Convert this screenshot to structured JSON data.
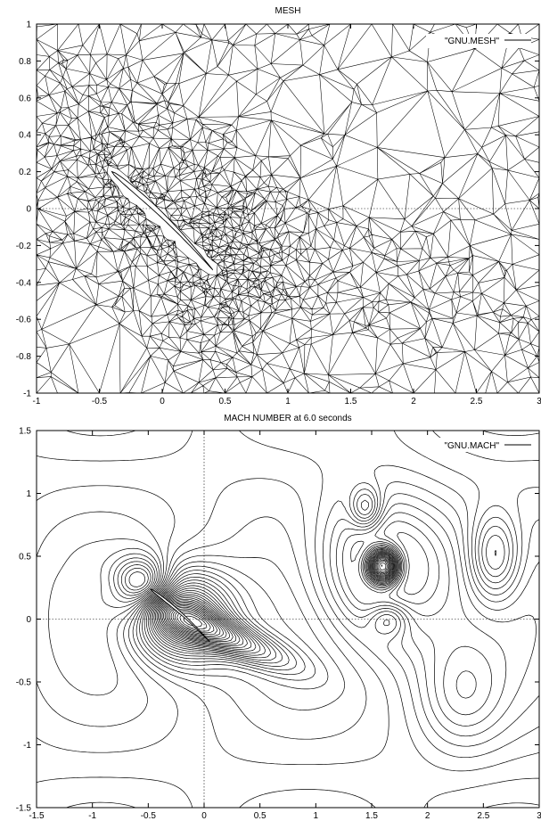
{
  "chart_data": [
    {
      "type": "mesh",
      "title": "MESH",
      "legend": "\"GNU.MESH\"",
      "legend_position": "top-right",
      "xlim": [
        -1,
        3
      ],
      "ylim": [
        -1,
        1
      ],
      "x_ticks": [
        "-1",
        "-0.5",
        "0",
        "0.5",
        "1",
        "1.5",
        "2",
        "2.5",
        "3"
      ],
      "y_ticks": [
        "1",
        "0.8",
        "0.6",
        "0.4",
        "0.2",
        "0",
        "-0.2",
        "-0.4",
        "-0.6",
        "-0.8",
        "-1"
      ],
      "airfoil": {
        "leading_edge": [
          -0.4,
          0.2
        ],
        "trailing_edge": [
          0.4,
          -0.33
        ]
      },
      "zero_axes": true
    },
    {
      "type": "contour",
      "title": "MACH NUMBER at 6.0 seconds",
      "legend": "\"GNU.MACH\"",
      "legend_position": "top-right",
      "xlim": [
        -1.5,
        3
      ],
      "ylim": [
        -1.5,
        1.5
      ],
      "x_ticks": [
        "-1.5",
        "-1",
        "-0.5",
        "0",
        "0.5",
        "1",
        "1.5",
        "2",
        "2.5",
        "3"
      ],
      "y_ticks": [
        "1.5",
        "1",
        "0.5",
        "0",
        "-0.5",
        "-1",
        "-1.5"
      ],
      "zero_axes": true
    }
  ]
}
